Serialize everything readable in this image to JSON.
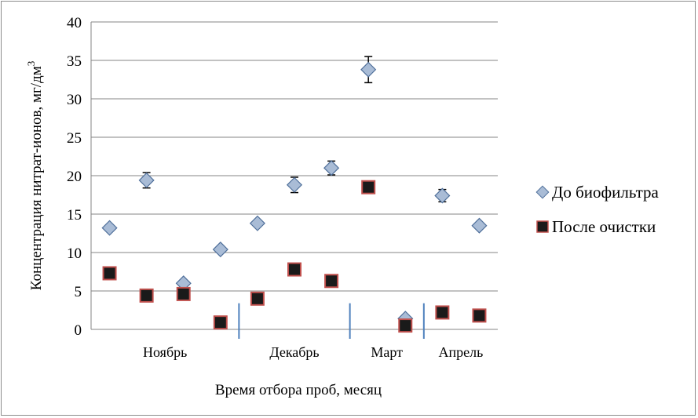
{
  "chart_data": {
    "type": "scatter",
    "title": "",
    "xlabel": "Время отбора проб, месяц",
    "ylabel": "Концентрация нитрат-ионов, мг/дм",
    "ylabel_sup": "3",
    "ylim": [
      0,
      40
    ],
    "yticks": [
      0,
      5,
      10,
      15,
      20,
      25,
      30,
      35,
      40
    ],
    "grid": true,
    "legend_position": "right",
    "month_labels": [
      "Ноябрь",
      "Декабрь",
      "Март",
      "Апрель"
    ],
    "month_ranges": [
      [
        1,
        4
      ],
      [
        5,
        7
      ],
      [
        8,
        9
      ],
      [
        10,
        11
      ]
    ],
    "separators_after": [
      4,
      7,
      9
    ],
    "x": [
      1,
      2,
      3,
      4,
      5,
      6,
      7,
      8,
      9,
      10,
      11
    ],
    "series": [
      {
        "name": "До биофильтра",
        "marker": "diamond",
        "color": "#a9bcd6",
        "y": [
          13.2,
          19.4,
          6.0,
          10.4,
          13.8,
          18.8,
          21.0,
          33.8,
          1.4,
          17.4,
          13.5
        ],
        "error": [
          0.3,
          1.0,
          0.3,
          0.3,
          0.3,
          1.0,
          0.9,
          1.7,
          0.3,
          0.8,
          0.4
        ]
      },
      {
        "name": "После очистки",
        "marker": "square",
        "color": "#1a1a1a",
        "y": [
          7.3,
          4.4,
          4.6,
          0.9,
          4.0,
          7.8,
          6.3,
          18.5,
          0.5,
          2.2,
          1.8
        ]
      }
    ]
  },
  "colors": {
    "grid": "#868686",
    "separator": "#4f81bd",
    "diamond_fill": "#a9bcd6",
    "diamond_stroke": "#4f6f9a",
    "square_fill": "#1a1a1a",
    "square_stroke": "#c0504d",
    "errorbar": "#000000"
  }
}
